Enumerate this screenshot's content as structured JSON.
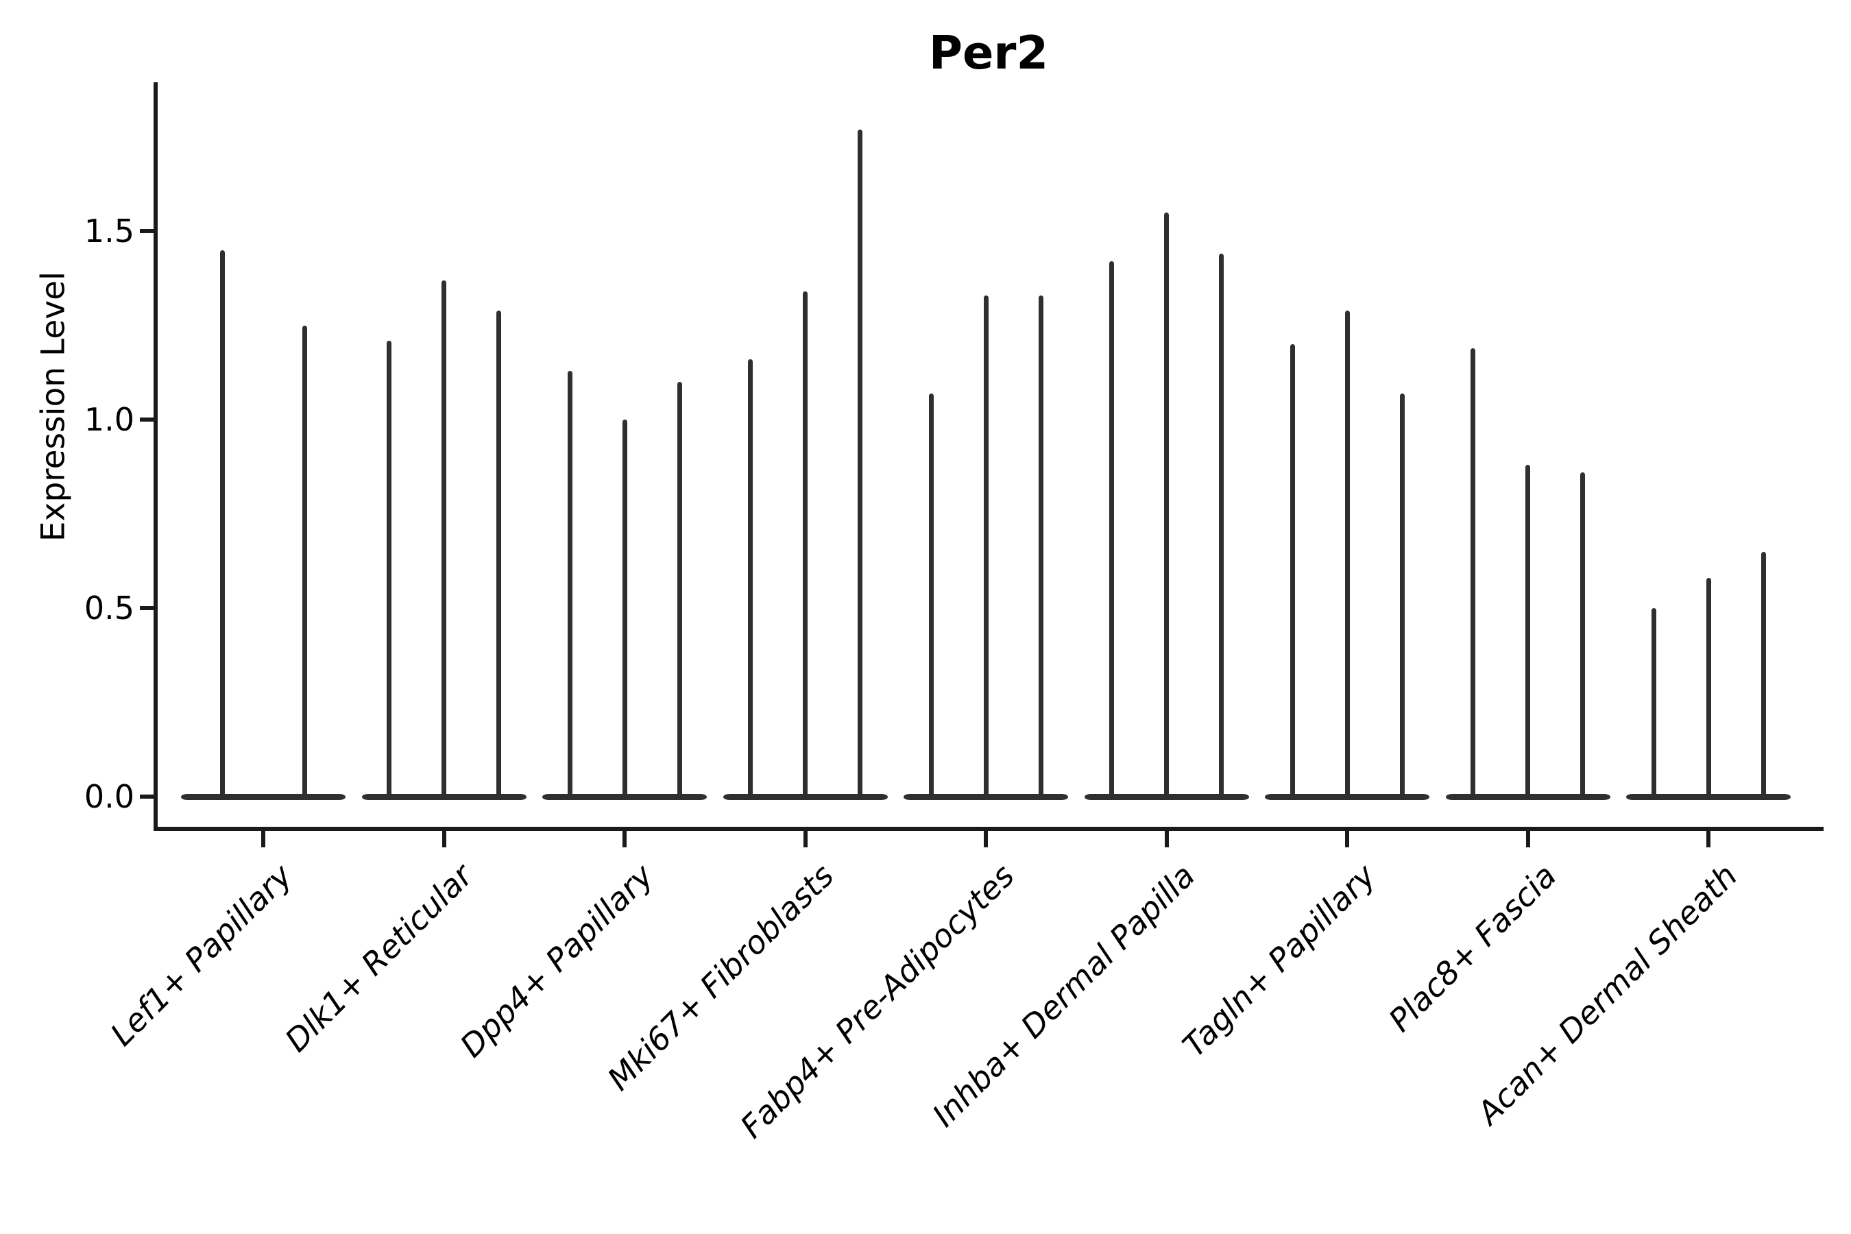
{
  "figure": {
    "title": "Per2",
    "y_axis": {
      "label": "Expression Level",
      "tick_labels": [
        "0.0",
        "0.5",
        "1.0",
        "1.5"
      ]
    },
    "x_axis": {
      "tick_labels": [
        "Lef1+ Papillary",
        "Dlk1+ Reticular",
        "Dpp4+ Papillary",
        "Mki67+ Fibroblasts",
        "Fabp4+ Pre-Adipocytes",
        "Inhba+ Dermal Papilla",
        "Tagln+ Papillary",
        "Plac8+ Fascia",
        "Acan+ Dermal Sheath"
      ]
    }
  },
  "colors": {
    "violin_line": "#2f2f2f",
    "axis": "#1a1a1a",
    "text": "#000000",
    "background": "#ffffff"
  },
  "chart_data": {
    "type": "violin",
    "title": "Per2",
    "xlabel": "",
    "ylabel": "Expression Level",
    "ytick_values": [
      0.0,
      0.5,
      1.0,
      1.5
    ],
    "ylim": [
      -0.09,
      1.89
    ],
    "grid": false,
    "legend_position": "none",
    "categories": [
      "Lef1+ Papillary",
      "Dlk1+ Reticular",
      "Dpp4+ Papillary",
      "Mki67+ Fibroblasts",
      "Fabp4+ Pre-Adipocytes",
      "Inhba+ Dermal Papilla",
      "Tagln+ Papillary",
      "Plac8+ Fascia",
      "Acan+ Dermal Sheath"
    ],
    "groups": [
      {
        "category": "Lef1+ Papillary",
        "violin_max_expression": [
          1.45,
          1.25
        ]
      },
      {
        "category": "Dlk1+ Reticular",
        "violin_max_expression": [
          1.21,
          1.37,
          1.29
        ]
      },
      {
        "category": "Dpp4+ Papillary",
        "violin_max_expression": [
          1.13,
          1.0,
          1.1
        ]
      },
      {
        "category": "Mki67+ Fibroblasts",
        "violin_max_expression": [
          1.16,
          1.34,
          1.77
        ]
      },
      {
        "category": "Fabp4+ Pre-Adipocytes",
        "violin_max_expression": [
          1.07,
          1.33,
          1.33
        ]
      },
      {
        "category": "Inhba+ Dermal Papilla",
        "violin_max_expression": [
          1.42,
          1.55,
          1.44
        ]
      },
      {
        "category": "Tagln+ Papillary",
        "violin_max_expression": [
          1.2,
          1.29,
          1.07
        ]
      },
      {
        "category": "Plac8+ Fascia",
        "violin_max_expression": [
          1.19,
          0.88,
          0.86
        ]
      },
      {
        "category": "Acan+ Dermal Sheath",
        "violin_max_expression": [
          0.5,
          0.58,
          0.65
        ]
      }
    ],
    "shape_note": "Each violin is a thin vertical spike: nearly all cells at 0 expression (flat wide base on the zero line) with a narrow tail reaching the listed maximum expression value."
  }
}
